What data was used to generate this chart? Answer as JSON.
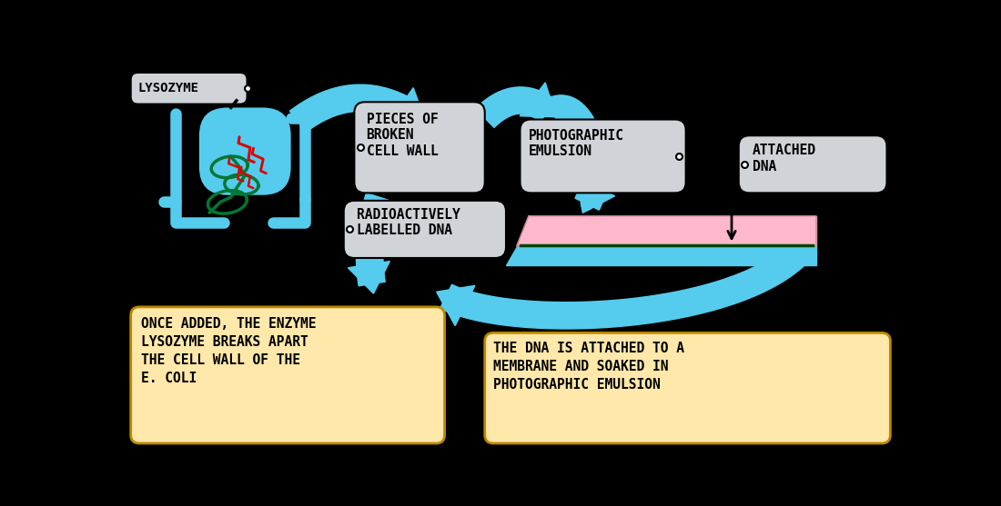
{
  "bg_color": "#000000",
  "cyan": "#55CCEE",
  "green": "#007733",
  "red": "#DD0000",
  "pink": "#FFB8CC",
  "label_bg": "#D0D4D8",
  "orange_bg": "#FFE8AA",
  "text_color": "#000000",
  "lysozyme_label": "LYSOZYME",
  "pieces_label": "PIECES OF\nBROKEN\nCELL WALL",
  "photo_label": "PHOTOGRAPHIC\nEMULSION",
  "attached_label": "ATTACHED\nDNA",
  "radioactive_label": "RADIOACTIVELY\nLABELLED DNA",
  "once_added_label": "ONCE ADDED, THE ENZYME\nLYSOZYME BREAKS APART\nTHE CELL WALL OF THE\nE. COLI",
  "dna_attached_label": "THE DNA IS ATTACHED TO A\nMEMBRANE AND SOAKED IN\nPHOTOGRAPHIC EMULSION",
  "fig_width": 11.0,
  "fig_height": 5.57
}
